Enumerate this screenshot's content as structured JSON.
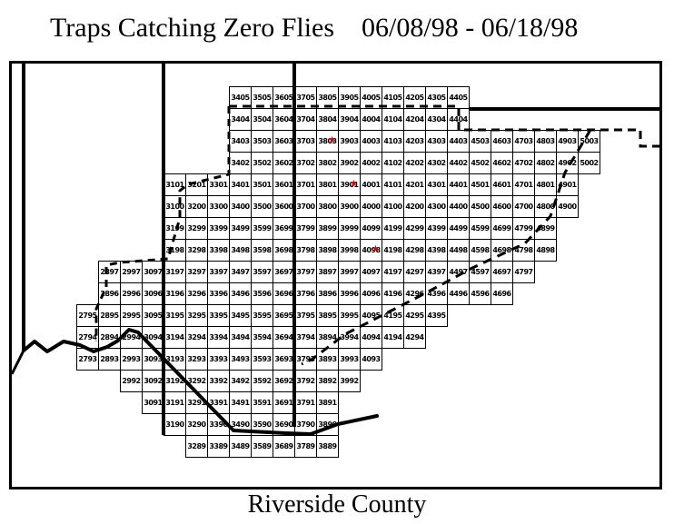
{
  "title": {
    "left": "Traps Catching Zero Flies",
    "right": "06/08/98 - 06/18/98"
  },
  "footer": {
    "label": "Riverside County"
  },
  "map": {
    "starred_cells": [
      "3803",
      "3901",
      "4098"
    ],
    "star_color": "#cc0000",
    "rows": [
      [
        "3405",
        "3505",
        "3605",
        "3705",
        "3805",
        "3905",
        "4005",
        "4105",
        "4205",
        "4305",
        "4405"
      ],
      [
        "3404",
        "3504",
        "3604",
        "3704",
        "3804",
        "3904",
        "4004",
        "4104",
        "4204",
        "4304",
        "4404"
      ],
      [
        "3403",
        "3503",
        "3603",
        "3703",
        "3803",
        "3903",
        "4003",
        "4103",
        "4203",
        "4303",
        "4403",
        "4503",
        "4603",
        "4703",
        "4803",
        "4903",
        "5003"
      ],
      [
        "3402",
        "3502",
        "3602",
        "3702",
        "3802",
        "3902",
        "4002",
        "4102",
        "4202",
        "4302",
        "4402",
        "4502",
        "4602",
        "4702",
        "4802",
        "4902",
        "5002"
      ],
      [
        "3101",
        "3201",
        "3301",
        "3401",
        "3501",
        "3601",
        "3701",
        "3801",
        "3901",
        "4001",
        "4101",
        "4201",
        "4301",
        "4401",
        "4501",
        "4601",
        "4701",
        "4801",
        "4901"
      ],
      [
        "3100",
        "3200",
        "3300",
        "3400",
        "3500",
        "3600",
        "3700",
        "3800",
        "3900",
        "4000",
        "4100",
        "4200",
        "4300",
        "4400",
        "4500",
        "4600",
        "4700",
        "4800",
        "4900"
      ],
      [
        "3199",
        "3299",
        "3399",
        "3499",
        "3599",
        "3699",
        "3799",
        "3899",
        "3999",
        "4099",
        "4199",
        "4299",
        "4399",
        "4499",
        "4599",
        "4699",
        "4799",
        "4899"
      ],
      [
        "3198",
        "3298",
        "3398",
        "3498",
        "3598",
        "3698",
        "3798",
        "3898",
        "3998",
        "4098",
        "4198",
        "4298",
        "4398",
        "4498",
        "4598",
        "4698",
        "4798",
        "4898"
      ],
      [
        "2897",
        "2997",
        "3097",
        "3197",
        "3297",
        "3397",
        "3497",
        "3597",
        "3697",
        "3797",
        "3897",
        "3997",
        "4097",
        "4197",
        "4297",
        "4397",
        "4497",
        "4597",
        "4697",
        "4797"
      ],
      [
        "2896",
        "2996",
        "3096",
        "3196",
        "3296",
        "3396",
        "3496",
        "3596",
        "3696",
        "3796",
        "3896",
        "3996",
        "4096",
        "4196",
        "4296",
        "4396",
        "4496",
        "4596",
        "4696"
      ],
      [
        "2795",
        "2895",
        "2995",
        "3095",
        "3195",
        "3295",
        "3395",
        "3495",
        "3595",
        "3695",
        "3795",
        "3895",
        "3995",
        "4095",
        "4195",
        "4295",
        "4395"
      ],
      [
        "2794",
        "2894",
        "2994",
        "3094",
        "3194",
        "3294",
        "3394",
        "3494",
        "3594",
        "3694",
        "3794",
        "3894",
        "3994",
        "4094",
        "4194",
        "4294"
      ],
      [
        "2793",
        "2893",
        "2993",
        "3093",
        "3193",
        "3293",
        "3393",
        "3493",
        "3593",
        "3693",
        "3793",
        "3893",
        "3993",
        "4093"
      ],
      [
        "2992",
        "3092",
        "3192",
        "3292",
        "3392",
        "3492",
        "3592",
        "3692",
        "3792",
        "3892",
        "3992"
      ],
      [
        "3091",
        "3191",
        "3291",
        "3391",
        "3491",
        "3591",
        "3691",
        "3791",
        "3891"
      ],
      [
        "3190",
        "3290",
        "3390",
        "3490",
        "3590",
        "3690",
        "3790",
        "3890"
      ],
      [
        "3289",
        "3389",
        "3489",
        "3589",
        "3689",
        "3789",
        "3889"
      ]
    ]
  }
}
